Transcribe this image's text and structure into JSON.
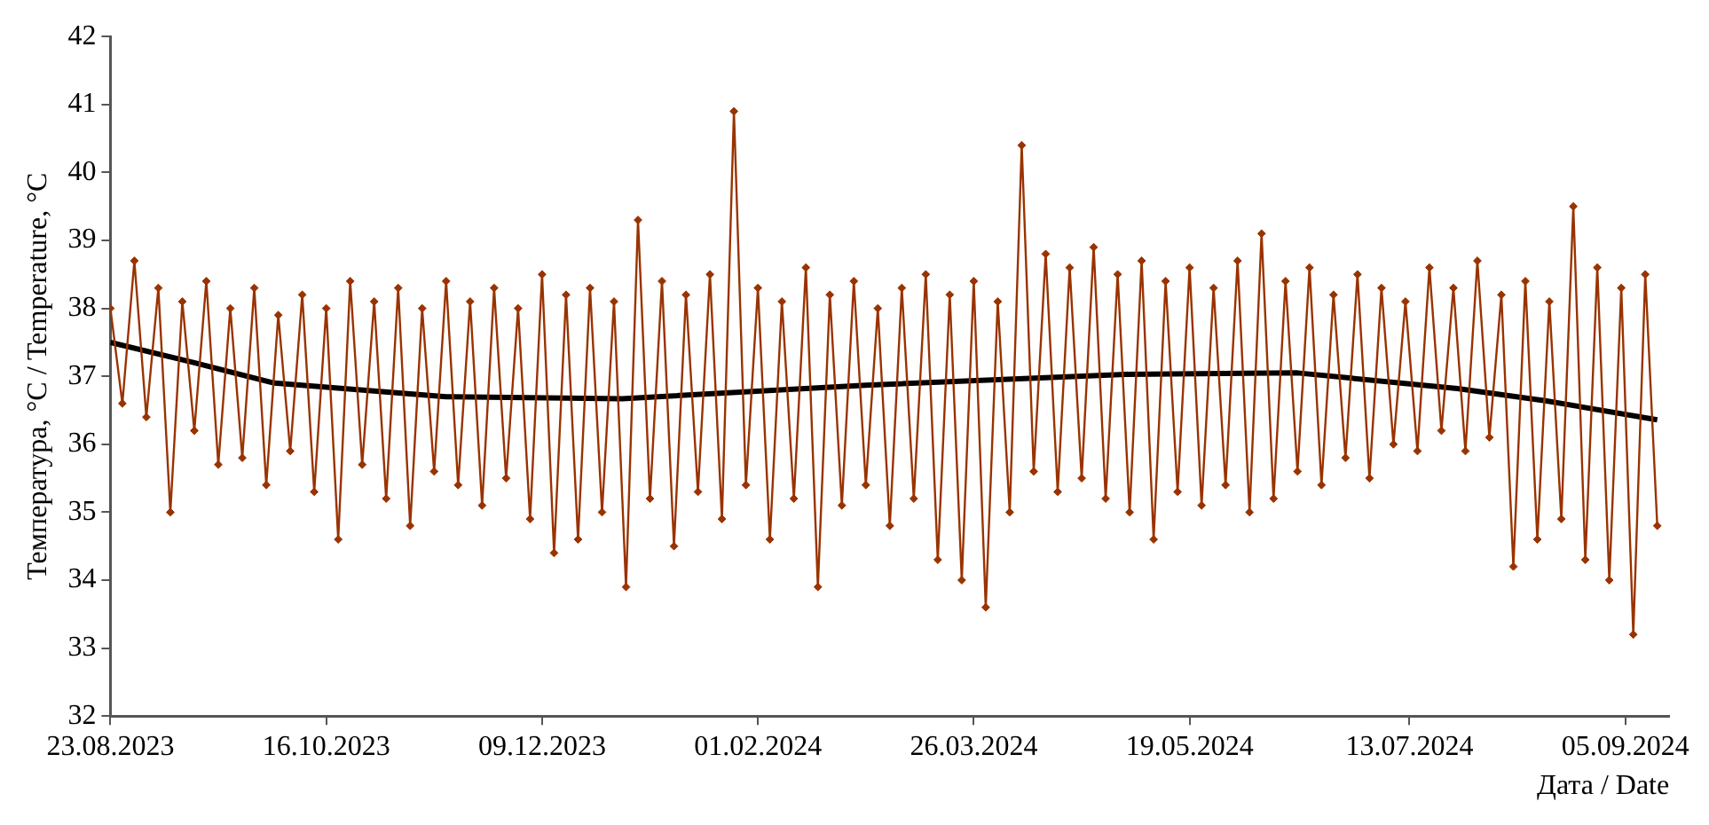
{
  "chart_data": {
    "type": "line",
    "xlabel": "Дата / Date",
    "ylabel": "Температура, °C / Temperature, °C",
    "xlim": [
      "2023-08-23",
      "2024-09-16"
    ],
    "xticks": [
      {
        "value": "2023-08-23",
        "label": "23.08.2023"
      },
      {
        "value": "2023-10-16",
        "label": "16.10.2023"
      },
      {
        "value": "2023-12-09",
        "label": "09.12.2023"
      },
      {
        "value": "2024-02-01",
        "label": "01.02.2024"
      },
      {
        "value": "2024-03-26",
        "label": "26.03.2024"
      },
      {
        "value": "2024-05-19",
        "label": "19.05.2024"
      },
      {
        "value": "2024-07-13",
        "label": "13.07.2024"
      },
      {
        "value": "2024-09-05",
        "label": "05.09.2024"
      }
    ],
    "ylim": [
      32,
      42
    ],
    "yticks": [
      32,
      33,
      34,
      35,
      36,
      37,
      38,
      39,
      40,
      41,
      42
    ],
    "grid": false,
    "legend": false,
    "series": [
      {
        "color": "#993300",
        "marker": "diamond",
        "x": [
          "2023-08-23",
          "2023-08-26",
          "2023-08-29",
          "2023-09-01",
          "2023-09-04",
          "2023-09-07",
          "2023-09-10",
          "2023-09-13",
          "2023-09-16",
          "2023-09-19",
          "2023-09-22",
          "2023-09-25",
          "2023-09-28",
          "2023-10-01",
          "2023-10-04",
          "2023-10-07",
          "2023-10-10",
          "2023-10-13",
          "2023-10-16",
          "2023-10-19",
          "2023-10-22",
          "2023-10-25",
          "2023-10-28",
          "2023-10-31",
          "2023-11-03",
          "2023-11-06",
          "2023-11-09",
          "2023-11-12",
          "2023-11-15",
          "2023-11-18",
          "2023-11-21",
          "2023-11-24",
          "2023-11-27",
          "2023-11-30",
          "2023-12-03",
          "2023-12-06",
          "2023-12-09",
          "2023-12-12",
          "2023-12-15",
          "2023-12-18",
          "2023-12-21",
          "2023-12-24",
          "2023-12-27",
          "2023-12-30",
          "2024-01-02",
          "2024-01-05",
          "2024-01-08",
          "2024-01-11",
          "2024-01-14",
          "2024-01-17",
          "2024-01-20",
          "2024-01-23",
          "2024-01-26",
          "2024-01-29",
          "2024-02-01",
          "2024-02-04",
          "2024-02-07",
          "2024-02-10",
          "2024-02-13",
          "2024-02-16",
          "2024-02-19",
          "2024-02-22",
          "2024-02-25",
          "2024-02-28",
          "2024-03-02",
          "2024-03-05",
          "2024-03-08",
          "2024-03-11",
          "2024-03-14",
          "2024-03-17",
          "2024-03-20",
          "2024-03-23",
          "2024-03-26",
          "2024-03-29",
          "2024-04-01",
          "2024-04-04",
          "2024-04-07",
          "2024-04-10",
          "2024-04-13",
          "2024-04-16",
          "2024-04-19",
          "2024-04-22",
          "2024-04-25",
          "2024-04-28",
          "2024-05-01",
          "2024-05-04",
          "2024-05-07",
          "2024-05-10",
          "2024-05-13",
          "2024-05-16",
          "2024-05-19",
          "2024-05-22",
          "2024-05-25",
          "2024-05-28",
          "2024-05-31",
          "2024-06-03",
          "2024-06-06",
          "2024-06-09",
          "2024-06-12",
          "2024-06-15",
          "2024-06-18",
          "2024-06-21",
          "2024-06-24",
          "2024-06-27",
          "2024-06-30",
          "2024-07-03",
          "2024-07-06",
          "2024-07-09",
          "2024-07-12",
          "2024-07-15",
          "2024-07-18",
          "2024-07-21",
          "2024-07-24",
          "2024-07-27",
          "2024-07-30",
          "2024-08-02",
          "2024-08-05",
          "2024-08-08",
          "2024-08-11",
          "2024-08-14",
          "2024-08-17",
          "2024-08-20",
          "2024-08-23",
          "2024-08-26",
          "2024-08-29",
          "2024-09-01",
          "2024-09-04",
          "2024-09-07",
          "2024-09-10",
          "2024-09-13"
        ],
        "values": [
          38.0,
          36.6,
          38.7,
          36.4,
          38.3,
          35.0,
          38.1,
          36.2,
          38.4,
          35.7,
          38.0,
          35.8,
          38.3,
          35.4,
          37.9,
          35.9,
          38.2,
          35.3,
          38.0,
          34.6,
          38.4,
          35.7,
          38.1,
          35.2,
          38.3,
          34.8,
          38.0,
          35.6,
          38.4,
          35.4,
          38.1,
          35.1,
          38.3,
          35.5,
          38.0,
          34.9,
          38.5,
          34.4,
          38.2,
          34.6,
          38.3,
          35.0,
          38.1,
          33.9,
          39.3,
          35.2,
          38.4,
          34.5,
          38.2,
          35.3,
          38.5,
          34.9,
          40.9,
          35.4,
          38.3,
          34.6,
          38.1,
          35.2,
          38.6,
          33.9,
          38.2,
          35.1,
          38.4,
          35.4,
          38.0,
          34.8,
          38.3,
          35.2,
          38.5,
          34.3,
          38.2,
          34.0,
          38.4,
          33.6,
          38.1,
          35.0,
          40.4,
          35.6,
          38.8,
          35.3,
          38.6,
          35.5,
          38.9,
          35.2,
          38.5,
          35.0,
          38.7,
          34.6,
          38.4,
          35.3,
          38.6,
          35.1,
          38.3,
          35.4,
          38.7,
          35.0,
          39.1,
          35.2,
          38.4,
          35.6,
          38.6,
          35.4,
          38.2,
          35.8,
          38.5,
          35.5,
          38.3,
          36.0,
          38.1,
          35.9,
          38.6,
          36.2,
          38.3,
          35.9,
          38.7,
          36.1,
          38.2,
          34.2,
          38.4,
          34.6,
          38.1,
          34.9,
          39.5,
          34.3,
          38.6,
          34.0,
          38.3,
          33.2,
          38.5,
          34.8
        ]
      },
      {
        "color": "#000000",
        "marker": "none",
        "x": [
          "2023-08-23",
          "2023-09-13",
          "2023-10-03",
          "2023-11-15",
          "2023-12-29",
          "2024-02-28",
          "2024-05-03",
          "2024-06-15",
          "2024-07-25",
          "2024-08-16",
          "2024-09-13"
        ],
        "values": [
          37.5,
          37.2,
          36.9,
          36.7,
          36.67,
          36.87,
          37.03,
          37.05,
          36.82,
          36.64,
          36.36
        ]
      }
    ]
  }
}
